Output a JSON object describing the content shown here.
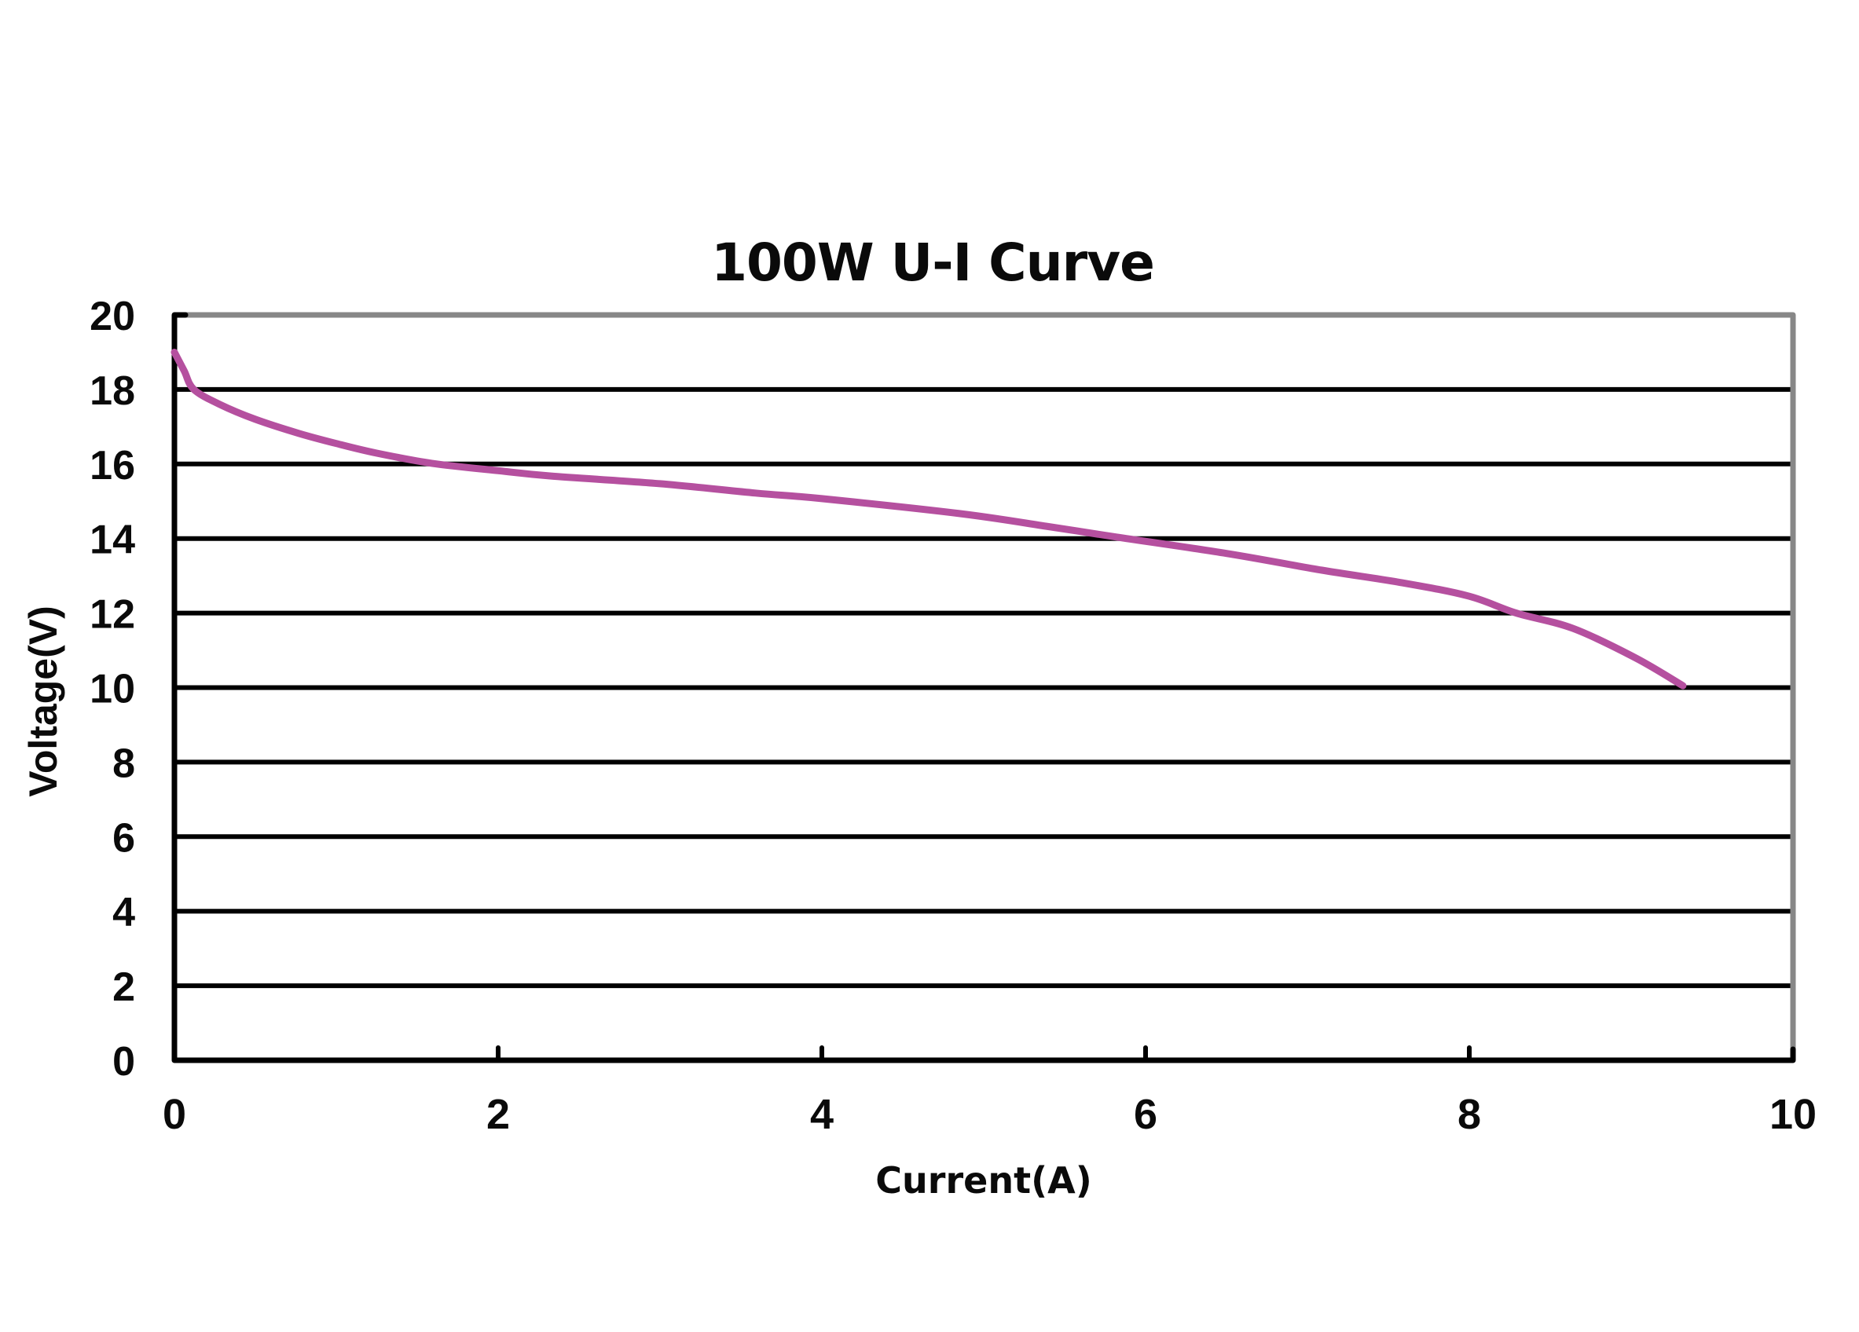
{
  "chart_data": {
    "type": "line",
    "title": "100W U-I Curve",
    "xlabel": "Current(A)",
    "ylabel": "Voltage(V)",
    "xlim": [
      0,
      10
    ],
    "ylim": [
      0,
      20
    ],
    "x_ticks": [
      0,
      2,
      4,
      6,
      8,
      10
    ],
    "y_ticks": [
      0,
      2,
      4,
      6,
      8,
      10,
      12,
      14,
      16,
      18,
      20
    ],
    "grid": {
      "horizontal": true,
      "vertical": false
    },
    "legend": null,
    "series": [
      {
        "name": "100W U-I Curve",
        "color": "#B5509F",
        "x": [
          0.0,
          0.06,
          0.12,
          0.28,
          0.5,
          0.77,
          1.0,
          1.25,
          1.59,
          2.0,
          2.32,
          3.0,
          3.59,
          4.0,
          4.85,
          5.4,
          5.82,
          6.5,
          7.09,
          7.59,
          8.0,
          8.29,
          8.64,
          9.03,
          9.32
        ],
        "y": [
          19.0,
          18.5,
          18.0,
          17.6,
          17.2,
          16.82,
          16.55,
          16.29,
          16.02,
          15.82,
          15.68,
          15.47,
          15.22,
          15.07,
          14.67,
          14.32,
          14.04,
          13.6,
          13.15,
          12.81,
          12.45,
          12.0,
          11.59,
          10.79,
          10.05
        ]
      }
    ]
  },
  "colors": {
    "curve": "#B5509F",
    "axis": "#000000",
    "frame": "#878787",
    "gridline": "#000000"
  }
}
